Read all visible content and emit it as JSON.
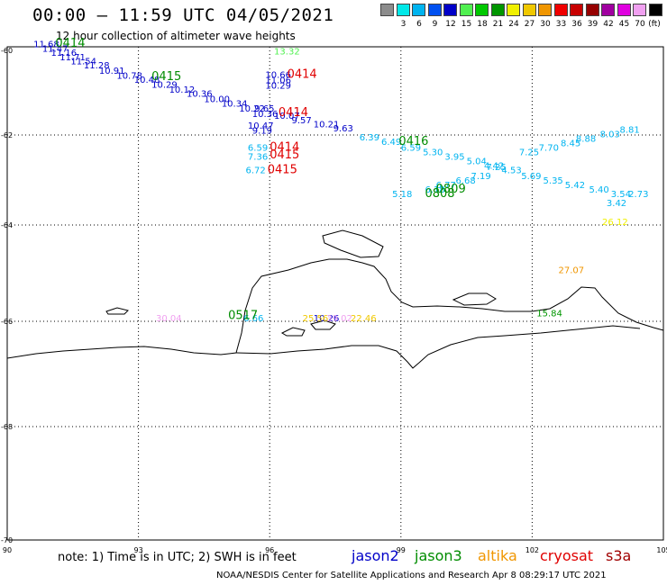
{
  "header": {
    "title": "00:00 – 11:59 UTC 04/05/2021",
    "subtitle": "12 hour collection of altimeter wave heights"
  },
  "colorbar": {
    "unit": "(ft)",
    "swatches": [
      {
        "label": "",
        "color": "#8c8c8c"
      },
      {
        "label": "3",
        "color": "#00e8e8"
      },
      {
        "label": "6",
        "color": "#00b4f0"
      },
      {
        "label": "9",
        "color": "#0050f0"
      },
      {
        "label": "12",
        "color": "#0000c8"
      },
      {
        "label": "15",
        "color": "#50f050"
      },
      {
        "label": "18",
        "color": "#00c800"
      },
      {
        "label": "21",
        "color": "#009600"
      },
      {
        "label": "24",
        "color": "#f0f000"
      },
      {
        "label": "27",
        "color": "#f0c800"
      },
      {
        "label": "30",
        "color": "#f09600"
      },
      {
        "label": "33",
        "color": "#f00000"
      },
      {
        "label": "36",
        "color": "#c80000"
      },
      {
        "label": "39",
        "color": "#960000"
      },
      {
        "label": "42",
        "color": "#a000a0"
      },
      {
        "label": "45",
        "color": "#e000e0"
      },
      {
        "label": "70",
        "color": "#f0a0f0"
      },
      {
        "label": "",
        "color": "#000000"
      }
    ]
  },
  "axes": {
    "lon_ticks": [
      90,
      93,
      96,
      99,
      102,
      105
    ],
    "lat_ticks": [
      -60,
      -62,
      -64,
      -66,
      -68,
      -70
    ]
  },
  "colors": {
    "jason2": "#0000c8",
    "jason3": "#008c00",
    "altika": "#f09600",
    "cryosat": "#e00000",
    "s3a": "#a00000",
    "grid": "#000000"
  },
  "wave_labels": [
    {
      "text": "11.68",
      "lon": 90.6,
      "lat": -59.93,
      "color": "#0000c8"
    },
    {
      "text": "11.47",
      "lon": 90.8,
      "lat": -60.03,
      "color": "#0000c8"
    },
    {
      "text": "11.16",
      "lon": 91.0,
      "lat": -60.13,
      "color": "#0000c8"
    },
    {
      "text": "11.71",
      "lon": 91.2,
      "lat": -60.23,
      "color": "#0000c8"
    },
    {
      "text": "11.54",
      "lon": 91.45,
      "lat": -60.33,
      "color": "#0000c8"
    },
    {
      "text": "11.28",
      "lon": 91.75,
      "lat": -60.43,
      "color": "#0000c8"
    },
    {
      "text": "10.91",
      "lon": 92.1,
      "lat": -60.55,
      "color": "#0000c8"
    },
    {
      "text": "10.78",
      "lon": 92.5,
      "lat": -60.67,
      "color": "#0000c8"
    },
    {
      "text": "10.48",
      "lon": 92.9,
      "lat": -60.77,
      "color": "#0000c8"
    },
    {
      "text": "10.29",
      "lon": 93.3,
      "lat": -60.88,
      "color": "#0000c8"
    },
    {
      "text": "10.12",
      "lon": 93.7,
      "lat": -61.0,
      "color": "#0000c8"
    },
    {
      "text": "10.36",
      "lon": 94.1,
      "lat": -61.1,
      "color": "#0000c8"
    },
    {
      "text": "10.00",
      "lon": 94.5,
      "lat": -61.22,
      "color": "#0000c8"
    },
    {
      "text": "10.34",
      "lon": 94.9,
      "lat": -61.33,
      "color": "#0000c8"
    },
    {
      "text": "10.22",
      "lon": 95.3,
      "lat": -61.45,
      "color": "#0000c8"
    },
    {
      "text": "9.65",
      "lon": 95.65,
      "lat": -61.45,
      "color": "#0000c8"
    },
    {
      "text": "10.36",
      "lon": 95.6,
      "lat": -61.57,
      "color": "#0000c8"
    },
    {
      "text": "10.07",
      "lon": 96.1,
      "lat": -61.62,
      "color": "#0000c8"
    },
    {
      "text": "9.57",
      "lon": 96.5,
      "lat": -61.72,
      "color": "#0000c8"
    },
    {
      "text": "10.21",
      "lon": 97.0,
      "lat": -61.82,
      "color": "#0000c8"
    },
    {
      "text": "9.63",
      "lon": 97.45,
      "lat": -61.92,
      "color": "#0000c8"
    },
    {
      "text": "10.47",
      "lon": 95.5,
      "lat": -61.85,
      "color": "#0000c8"
    },
    {
      "text": "9.19",
      "lon": 95.6,
      "lat": -61.97,
      "color": "#0000c8"
    },
    {
      "text": "10.66",
      "lon": 95.9,
      "lat": -60.65,
      "color": "#0000c8"
    },
    {
      "text": "11.06",
      "lon": 95.9,
      "lat": -60.78,
      "color": "#0000c8"
    },
    {
      "text": "10.29",
      "lon": 95.9,
      "lat": -60.9,
      "color": "#0000c8"
    },
    {
      "text": "13.32",
      "lon": 96.1,
      "lat": -60.1,
      "color": "#50f050"
    },
    {
      "text": "6.59",
      "lon": 95.5,
      "lat": -62.35,
      "color": "#00b4f0"
    },
    {
      "text": "7.36",
      "lon": 95.5,
      "lat": -62.55,
      "color": "#00b4f0"
    },
    {
      "text": "6.72",
      "lon": 95.45,
      "lat": -62.85,
      "color": "#00b4f0"
    },
    {
      "text": "6.39",
      "lon": 98.05,
      "lat": -62.12,
      "color": "#00b4f0"
    },
    {
      "text": "6.49",
      "lon": 98.55,
      "lat": -62.22,
      "color": "#00b4f0"
    },
    {
      "text": "6.59",
      "lon": 99.0,
      "lat": -62.35,
      "color": "#00b4f0"
    },
    {
      "text": "5.30",
      "lon": 99.5,
      "lat": -62.45,
      "color": "#00b4f0"
    },
    {
      "text": "3.95",
      "lon": 100.0,
      "lat": -62.55,
      "color": "#00b4f0"
    },
    {
      "text": "5.04",
      "lon": 100.5,
      "lat": -62.65,
      "color": "#00b4f0"
    },
    {
      "text": "4.42",
      "lon": 100.9,
      "lat": -62.75,
      "color": "#00b4f0"
    },
    {
      "text": "4.53",
      "lon": 101.3,
      "lat": -62.85,
      "color": "#00b4f0"
    },
    {
      "text": "5.69",
      "lon": 101.75,
      "lat": -62.98,
      "color": "#00b4f0"
    },
    {
      "text": "5.35",
      "lon": 102.25,
      "lat": -63.08,
      "color": "#00b4f0"
    },
    {
      "text": "5.42",
      "lon": 102.75,
      "lat": -63.18,
      "color": "#00b4f0"
    },
    {
      "text": "5.40",
      "lon": 103.3,
      "lat": -63.28,
      "color": "#00b4f0"
    },
    {
      "text": "3.54",
      "lon": 103.8,
      "lat": -63.38,
      "color": "#00b4f0"
    },
    {
      "text": "3.42",
      "lon": 103.7,
      "lat": -63.58,
      "color": "#00b4f0"
    },
    {
      "text": "2.73",
      "lon": 104.2,
      "lat": -63.38,
      "color": "#00b4f0"
    },
    {
      "text": "7.25",
      "lon": 100.95,
      "lat": -62.78,
      "color": "#00b4f0"
    },
    {
      "text": "7.19",
      "lon": 100.6,
      "lat": -62.98,
      "color": "#00b4f0"
    },
    {
      "text": "6.68",
      "lon": 100.25,
      "lat": -63.08,
      "color": "#00b4f0"
    },
    {
      "text": "6.77",
      "lon": 99.8,
      "lat": -63.18,
      "color": "#00b4f0"
    },
    {
      "text": "6.18",
      "lon": 99.55,
      "lat": -63.28,
      "color": "#00b4f0"
    },
    {
      "text": "5.18",
      "lon": 98.8,
      "lat": -63.38,
      "color": "#00b4f0"
    },
    {
      "text": "7.25",
      "lon": 101.7,
      "lat": -62.45,
      "color": "#00b4f0"
    },
    {
      "text": "7.70",
      "lon": 102.15,
      "lat": -62.35,
      "color": "#00b4f0"
    },
    {
      "text": "8.45",
      "lon": 102.65,
      "lat": -62.25,
      "color": "#00b4f0"
    },
    {
      "text": "8.88",
      "lon": 103.0,
      "lat": -62.15,
      "color": "#00b4f0"
    },
    {
      "text": "8.03",
      "lon": 103.55,
      "lat": -62.05,
      "color": "#00b4f0"
    },
    {
      "text": "8.81",
      "lon": 104.0,
      "lat": -61.95,
      "color": "#00b4f0"
    },
    {
      "text": "6.66",
      "lon": 95.4,
      "lat": -66.0,
      "color": "#00b4f0"
    },
    {
      "text": "10.26",
      "lon": 97.0,
      "lat": -66.0,
      "color": "#0000c8"
    },
    {
      "text": "25.56",
      "lon": 96.75,
      "lat": -66.0,
      "color": "#f0c800"
    },
    {
      "text": "39.02",
      "lon": 97.3,
      "lat": -66.0,
      "color": "#f0a0f0"
    },
    {
      "text": "22.46",
      "lon": 97.85,
      "lat": -66.0,
      "color": "#f0c800"
    },
    {
      "text": "30.04",
      "lon": 93.4,
      "lat": -66.0,
      "color": "#f0a0f0"
    },
    {
      "text": "26.12",
      "lon": 103.6,
      "lat": -64.0,
      "color": "#f0f000"
    },
    {
      "text": "27.07",
      "lon": 102.6,
      "lat": -65.0,
      "color": "#f09600"
    },
    {
      "text": "15.84",
      "lon": 102.1,
      "lat": -65.9,
      "color": "#009600"
    }
  ],
  "time_labels": [
    {
      "text": "0414",
      "lon": 91.1,
      "lat": -59.92,
      "color": "#008c00"
    },
    {
      "text": "0415",
      "lon": 93.3,
      "lat": -60.7,
      "color": "#008c00"
    },
    {
      "text": "0414",
      "lon": 96.4,
      "lat": -60.65,
      "color": "#e00000"
    },
    {
      "text": "0414",
      "lon": 96.2,
      "lat": -61.55,
      "color": "#e00000"
    },
    {
      "text": "0414",
      "lon": 96.0,
      "lat": -62.35,
      "color": "#e00000"
    },
    {
      "text": "0415",
      "lon": 96.0,
      "lat": -62.52,
      "color": "#e00000"
    },
    {
      "text": "0415",
      "lon": 95.95,
      "lat": -62.85,
      "color": "#e00000"
    },
    {
      "text": "0416",
      "lon": 98.95,
      "lat": -62.22,
      "color": "#008c00"
    },
    {
      "text": "0809",
      "lon": 99.8,
      "lat": -63.28,
      "color": "#008c00"
    },
    {
      "text": "0808",
      "lon": 99.55,
      "lat": -63.38,
      "color": "#008c00"
    },
    {
      "text": "0517",
      "lon": 95.05,
      "lat": -65.95,
      "color": "#008c00"
    }
  ],
  "legend": {
    "note": "note: 1) Time is in UTC; 2) SWH is in feet",
    "items": [
      {
        "label": "jason2",
        "color": "#0000c8"
      },
      {
        "label": "jason3",
        "color": "#008c00"
      },
      {
        "label": "altika",
        "color": "#f09600"
      },
      {
        "label": "cryosat",
        "color": "#e00000"
      },
      {
        "label": "s3a",
        "color": "#a00000"
      }
    ]
  },
  "credit": "NOAA/NESDIS Center for Satellite Applications and Research   Apr  8 08:29:17 UTC 2021"
}
